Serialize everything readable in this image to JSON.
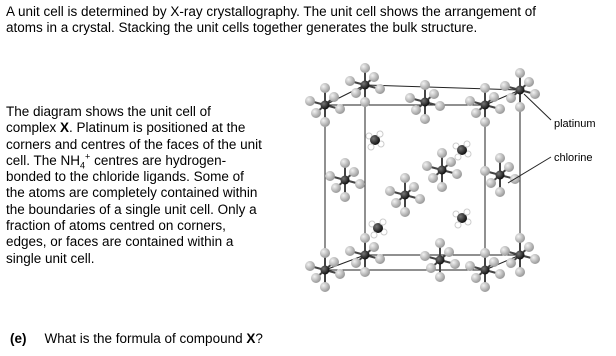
{
  "intro": [
    "A unit cell is determined by X-ray crystallography. The unit cell shows the arrangement of",
    "atoms in a crystal. Stacking the unit cells together generates the bulk structure."
  ],
  "paragraph": [
    "The diagram shows the unit cell of",
    "complex ",
    "X",
    ". Platinum is positioned at the",
    "corners and centres of the faces of the unit",
    "cell. The NH",
    "4",
    "+",
    " centres are hydrogen-",
    "bonded to the chloride ligands. Some of",
    "the atoms are completely contained within",
    "the boundaries of a single unit cell. Only a",
    "fraction of atoms centred on corners,",
    "edges, or faces are contained within a",
    "single unit cell."
  ],
  "diagram": {
    "labels": [
      "platinum",
      "chlorine"
    ]
  },
  "question": {
    "part": "(e)",
    "text": "What is the formula of compound ",
    "bold": "X",
    "end": "?"
  }
}
